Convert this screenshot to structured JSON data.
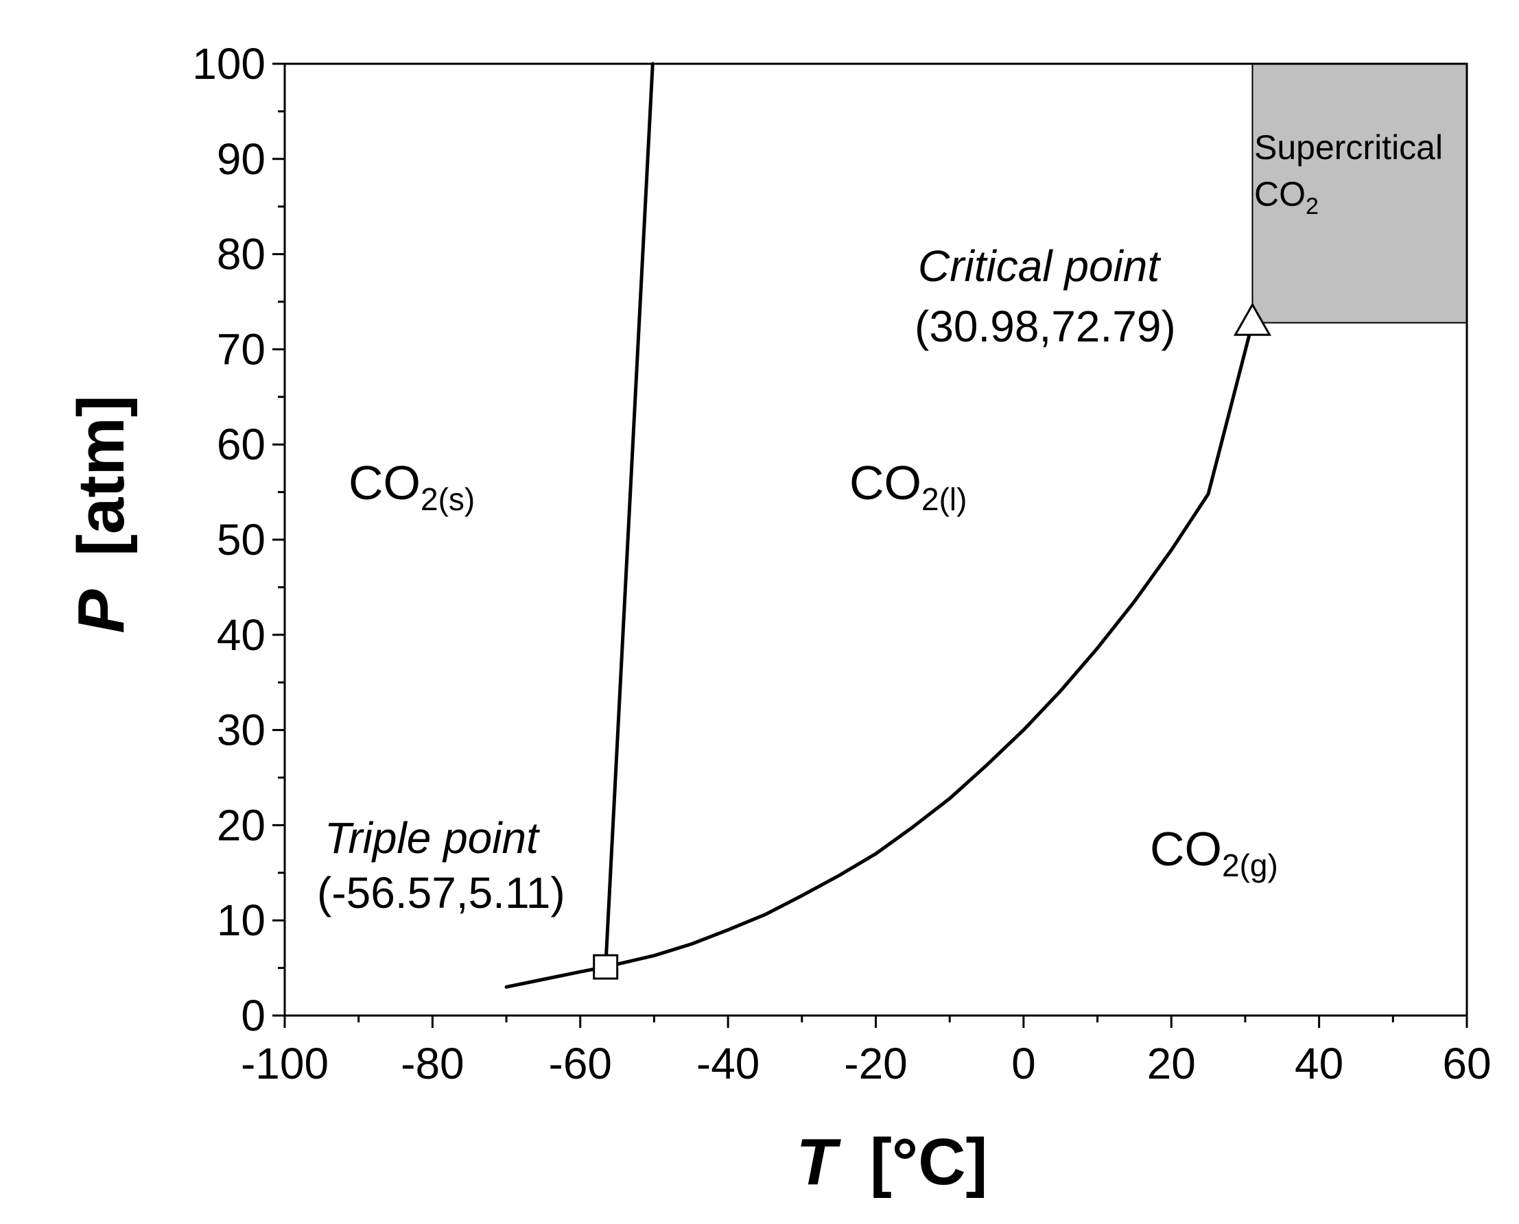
{
  "chart_data": {
    "type": "line",
    "xlabel": {
      "symbol": "T",
      "unit": "[°C]"
    },
    "ylabel": {
      "symbol": "P",
      "unit": "[atm]"
    },
    "xlim": [
      -100,
      60
    ],
    "ylim": [
      0,
      100
    ],
    "x_ticks": [
      -100,
      -80,
      -60,
      -40,
      -20,
      0,
      20,
      40,
      60
    ],
    "x_minor_step": 10,
    "y_ticks": [
      0,
      10,
      20,
      30,
      40,
      50,
      60,
      70,
      80,
      90,
      100
    ],
    "y_minor_step": 5,
    "grid": false,
    "legend": "none",
    "line_color": "#000000",
    "series": [
      {
        "x": [
          -70,
          -65,
          -60,
          -56.57,
          -50,
          -45,
          -40,
          -35,
          -30,
          -25,
          -20,
          -15,
          -10,
          -5,
          0,
          5,
          10,
          15,
          20,
          25,
          30.98
        ],
        "y": [
          3.0,
          3.8,
          4.6,
          5.11,
          6.3,
          7.5,
          9.0,
          10.6,
          12.6,
          14.7,
          17.0,
          19.8,
          22.8,
          26.3,
          30.0,
          34.1,
          38.6,
          43.5,
          48.9,
          54.8,
          72.79
        ]
      },
      {
        "x": [
          -56.57,
          -50.2
        ],
        "y": [
          5.11,
          100
        ]
      }
    ],
    "regions": [
      {
        "name": "supercritical",
        "x_range": [
          30.98,
          60
        ],
        "y_range": [
          72.79,
          100
        ],
        "fill": "#c0c0c0",
        "label": {
          "line1": "Supercritical",
          "line2_main": "CO",
          "line2_sub": "2"
        }
      }
    ],
    "phase_labels": [
      {
        "key": "solid",
        "main": "CO",
        "sub": "2(s)"
      },
      {
        "key": "liquid",
        "main": "CO",
        "sub": "2(l)"
      },
      {
        "key": "gas",
        "main": "CO",
        "sub": "2(g)"
      }
    ],
    "points": [
      {
        "key": "triple",
        "marker": "square",
        "x": -56.57,
        "y": 5.11,
        "title": "Triple point",
        "coords": "(-56.57,5.11)"
      },
      {
        "key": "critical",
        "marker": "triangle",
        "x": 30.98,
        "y": 72.79,
        "title": "Critical point",
        "coords": "(30.98,72.79)"
      }
    ]
  }
}
